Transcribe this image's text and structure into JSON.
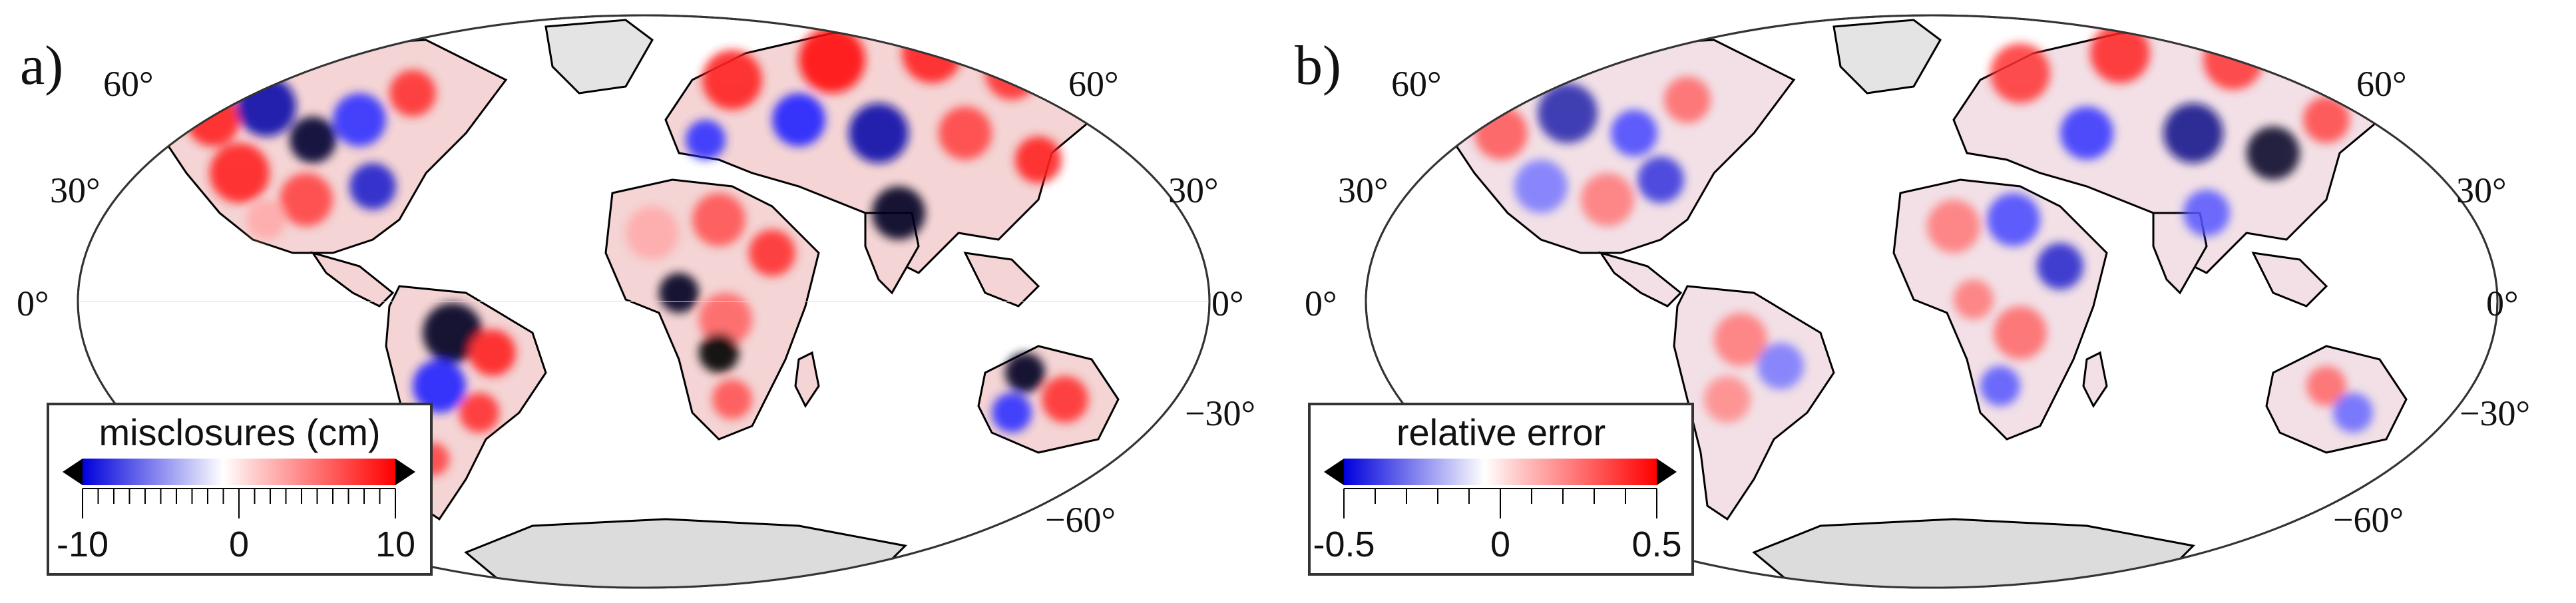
{
  "panels": [
    {
      "label": "a)",
      "colorbar": {
        "title": "misclosures (cm)",
        "min": -10,
        "max": 10,
        "tick_labels": [
          "-10",
          "0",
          "10"
        ],
        "colors": [
          "#000000",
          "#0000ff",
          "#ffffff",
          "#ff0000",
          "#000000"
        ]
      }
    },
    {
      "label": "b)",
      "colorbar": {
        "title": "relative error",
        "min": -0.5,
        "max": 0.5,
        "tick_labels": [
          "-0.5",
          "0",
          "0.5"
        ],
        "colors": [
          "#000000",
          "#0000ff",
          "#ffffff",
          "#ff0000",
          "#000000"
        ]
      }
    }
  ],
  "latitude_labels": {
    "left": [
      "60°",
      "30°",
      "0°"
    ],
    "right": [
      "60°",
      "30°",
      "0°",
      "−30°",
      "−60°"
    ]
  },
  "map": {
    "projection": "Mollweide",
    "land_color": "#ffffff",
    "coastline_color": "#000000",
    "antarctica_color": "#d8d8d8"
  }
}
